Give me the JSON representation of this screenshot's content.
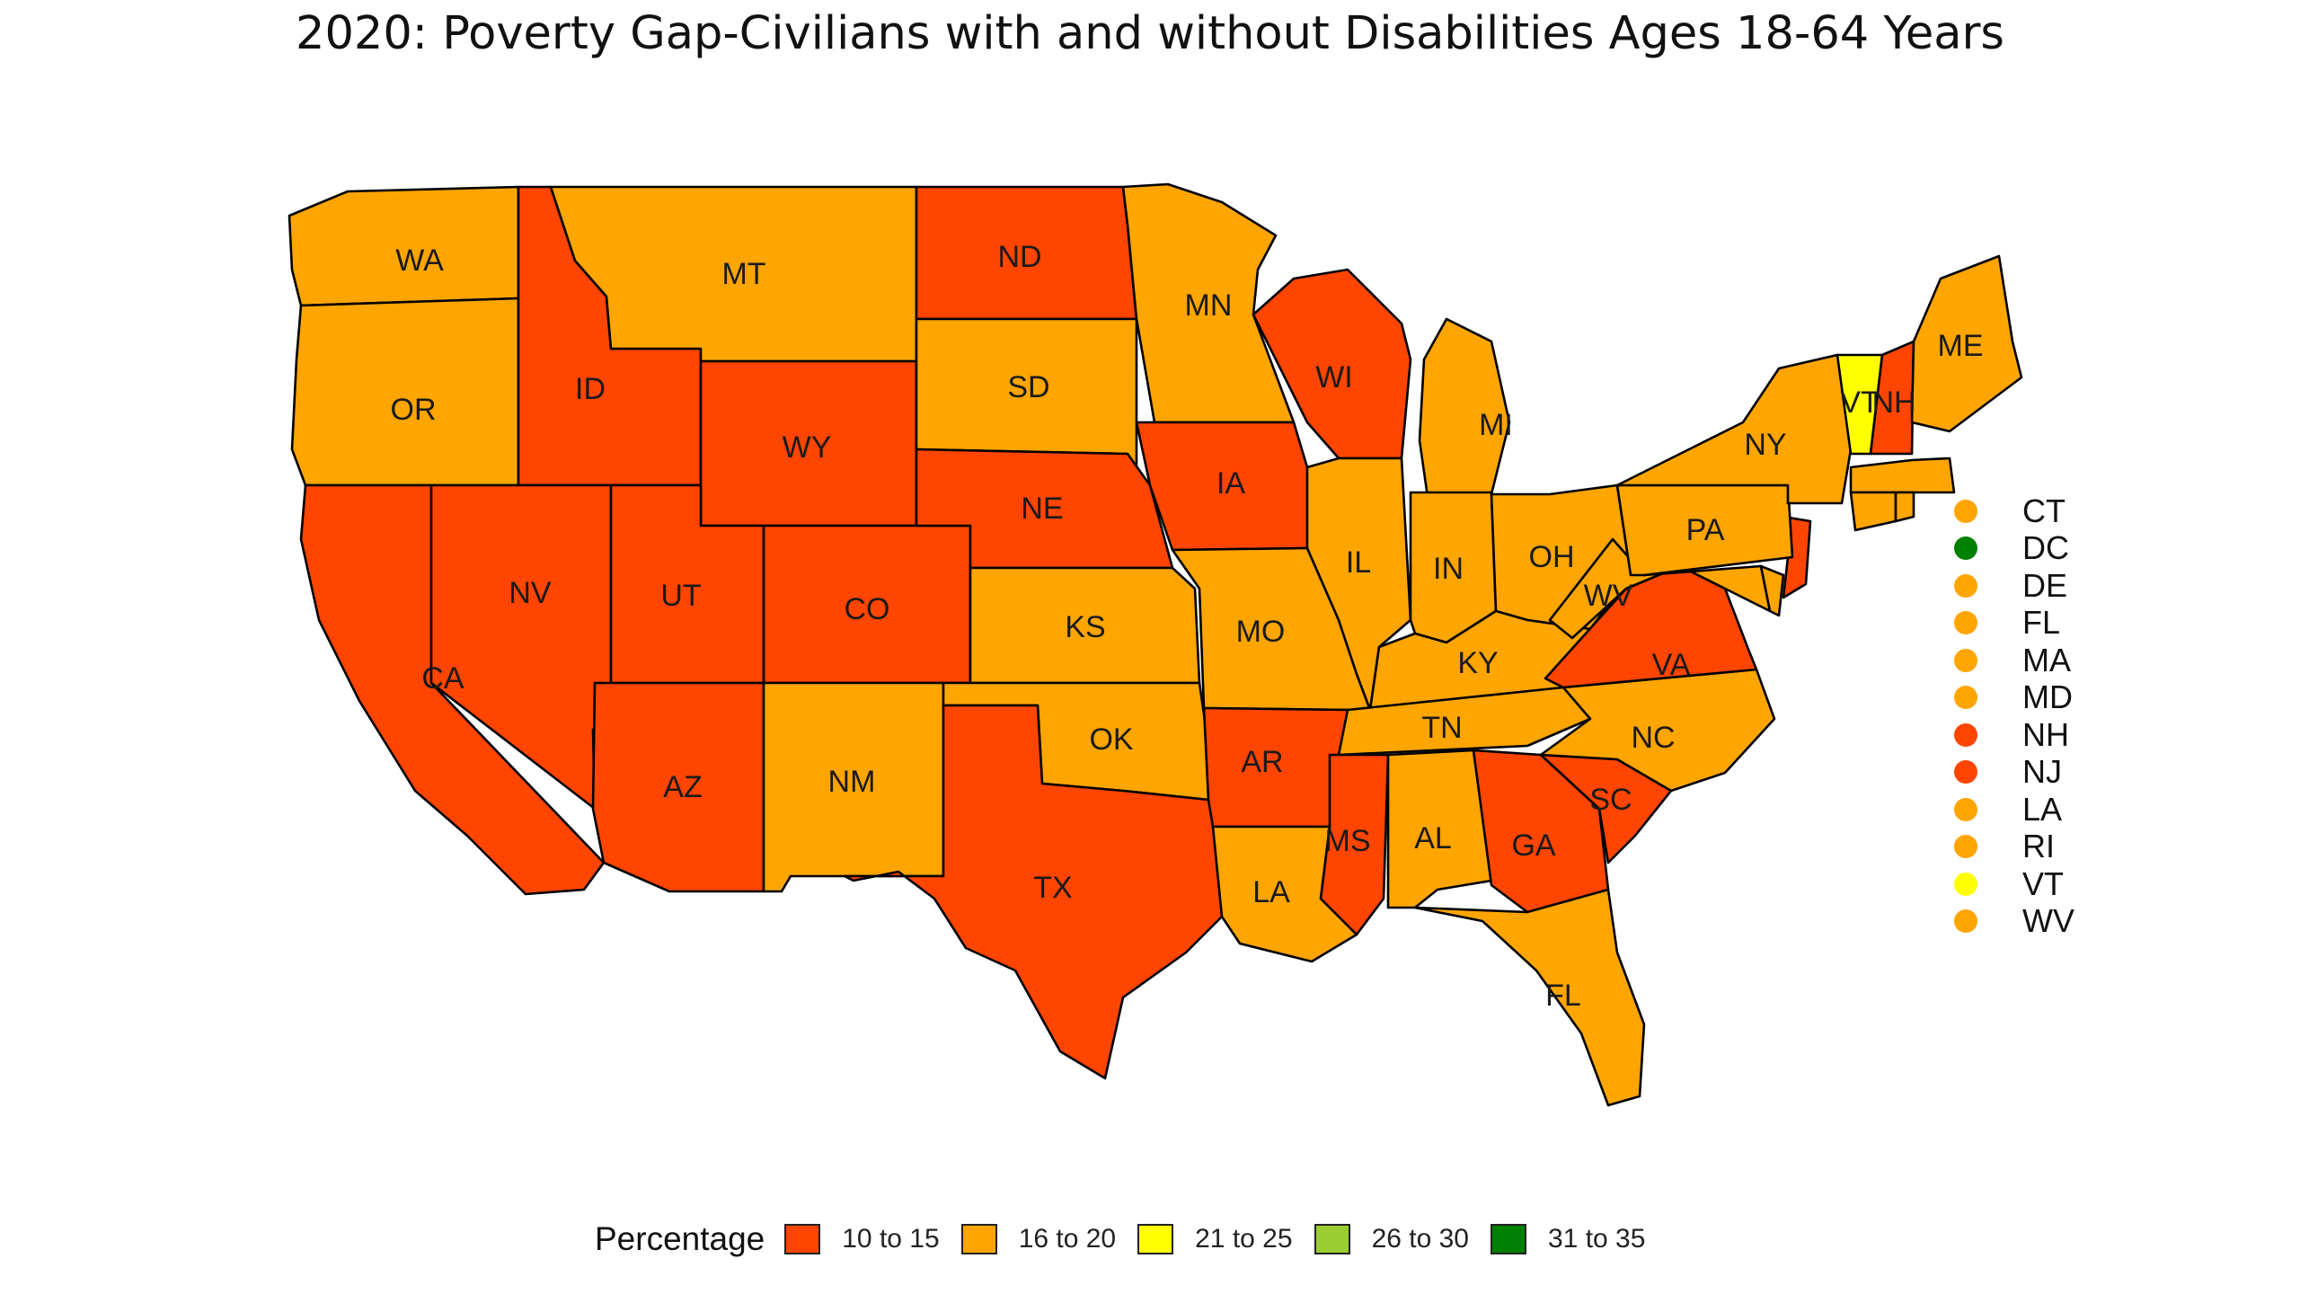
{
  "title": "2020: Poverty Gap-Civilians with and without Disabilities Ages 18-64 Years",
  "legend": {
    "title": "Percentage",
    "bins": [
      {
        "label": "10 to 15",
        "color": "#ff4500"
      },
      {
        "label": "16 to 20",
        "color": "#ffa500"
      },
      {
        "label": "21 to 25",
        "color": "#ffff00"
      },
      {
        "label": "26 to 30",
        "color": "#9acd32"
      },
      {
        "label": "31 to 35",
        "color": "#008000"
      }
    ]
  },
  "states": [
    {
      "code": "WA",
      "bin": "16 to 20"
    },
    {
      "code": "OR",
      "bin": "16 to 20"
    },
    {
      "code": "CA",
      "bin": "10 to 15"
    },
    {
      "code": "ID",
      "bin": "10 to 15"
    },
    {
      "code": "NV",
      "bin": "10 to 15"
    },
    {
      "code": "MT",
      "bin": "16 to 20"
    },
    {
      "code": "WY",
      "bin": "10 to 15"
    },
    {
      "code": "UT",
      "bin": "10 to 15"
    },
    {
      "code": "AZ",
      "bin": "10 to 15"
    },
    {
      "code": "CO",
      "bin": "10 to 15"
    },
    {
      "code": "NM",
      "bin": "16 to 20"
    },
    {
      "code": "ND",
      "bin": "10 to 15"
    },
    {
      "code": "SD",
      "bin": "16 to 20"
    },
    {
      "code": "NE",
      "bin": "10 to 15"
    },
    {
      "code": "KS",
      "bin": "16 to 20"
    },
    {
      "code": "OK",
      "bin": "16 to 20"
    },
    {
      "code": "TX",
      "bin": "10 to 15"
    },
    {
      "code": "MN",
      "bin": "16 to 20"
    },
    {
      "code": "IA",
      "bin": "10 to 15"
    },
    {
      "code": "MO",
      "bin": "16 to 20"
    },
    {
      "code": "AR",
      "bin": "10 to 15"
    },
    {
      "code": "LA",
      "bin": "16 to 20"
    },
    {
      "code": "WI",
      "bin": "10 to 15"
    },
    {
      "code": "IL",
      "bin": "16 to 20"
    },
    {
      "code": "MI",
      "bin": "16 to 20"
    },
    {
      "code": "IN",
      "bin": "16 to 20"
    },
    {
      "code": "OH",
      "bin": "16 to 20"
    },
    {
      "code": "KY",
      "bin": "16 to 20"
    },
    {
      "code": "TN",
      "bin": "16 to 20"
    },
    {
      "code": "MS",
      "bin": "10 to 15"
    },
    {
      "code": "AL",
      "bin": "16 to 20"
    },
    {
      "code": "GA",
      "bin": "10 to 15"
    },
    {
      "code": "FL",
      "bin": "16 to 20"
    },
    {
      "code": "SC",
      "bin": "10 to 15"
    },
    {
      "code": "NC",
      "bin": "16 to 20"
    },
    {
      "code": "VA",
      "bin": "10 to 15"
    },
    {
      "code": "WV",
      "bin": "16 to 20"
    },
    {
      "code": "MD",
      "bin": "16 to 20"
    },
    {
      "code": "DE",
      "bin": "16 to 20"
    },
    {
      "code": "NJ",
      "bin": "10 to 15"
    },
    {
      "code": "PA",
      "bin": "16 to 20"
    },
    {
      "code": "NY",
      "bin": "16 to 20"
    },
    {
      "code": "VT",
      "bin": "21 to 25"
    },
    {
      "code": "NH",
      "bin": "10 to 15"
    },
    {
      "code": "ME",
      "bin": "16 to 20"
    },
    {
      "code": "MA",
      "bin": "16 to 20"
    },
    {
      "code": "CT",
      "bin": "16 to 20"
    },
    {
      "code": "RI",
      "bin": "16 to 20"
    }
  ],
  "small_states": [
    {
      "code": "CT",
      "bin": "16 to 20"
    },
    {
      "code": "DC",
      "bin": "31 to 35"
    },
    {
      "code": "DE",
      "bin": "16 to 20"
    },
    {
      "code": "FL",
      "bin": "16 to 20"
    },
    {
      "code": "MA",
      "bin": "16 to 20"
    },
    {
      "code": "MD",
      "bin": "16 to 20"
    },
    {
      "code": "NH",
      "bin": "10 to 15"
    },
    {
      "code": "NJ",
      "bin": "10 to 15"
    },
    {
      "code": "LA",
      "bin": "16 to 20"
    },
    {
      "code": "RI",
      "bin": "16 to 20"
    },
    {
      "code": "VT",
      "bin": "21 to 25"
    },
    {
      "code": "WV",
      "bin": "16 to 20"
    }
  ]
}
